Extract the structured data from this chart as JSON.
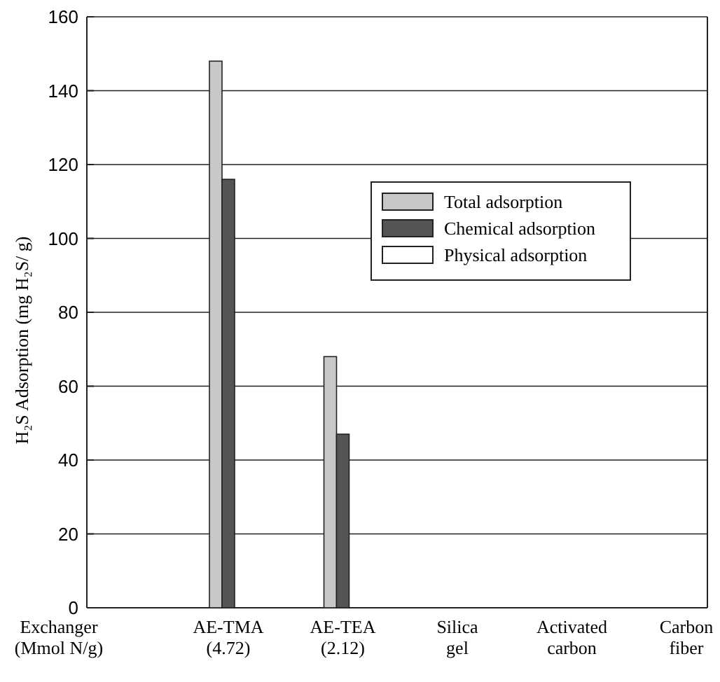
{
  "chart_data": {
    "type": "bar",
    "ylabel": "H₂S Adsorption (mg H₂S/ g)",
    "xlabel": "Exchanger\n(Mmol N/g)",
    "categories": [
      "AE-TMA\n(4.72)",
      "AE-TEA\n(2.12)",
      "Silica\ngel",
      "Activated\ncarbon",
      "Carbon\nfiber"
    ],
    "series": [
      {
        "name": "Total adsorption",
        "color": "#c8c8c8",
        "values": [
          148,
          68,
          null,
          null,
          null
        ]
      },
      {
        "name": "Chemical adsorption",
        "color": "#555555",
        "values": [
          116,
          47,
          null,
          null,
          null
        ]
      },
      {
        "name": "Physical adsorption",
        "color": "#ffffff",
        "values": [
          null,
          null,
          null,
          null,
          null
        ]
      }
    ],
    "ylim": [
      0,
      160
    ],
    "yticks": [
      0,
      20,
      40,
      60,
      80,
      100,
      120,
      140,
      160
    ],
    "grid": "y",
    "legend": "center"
  }
}
